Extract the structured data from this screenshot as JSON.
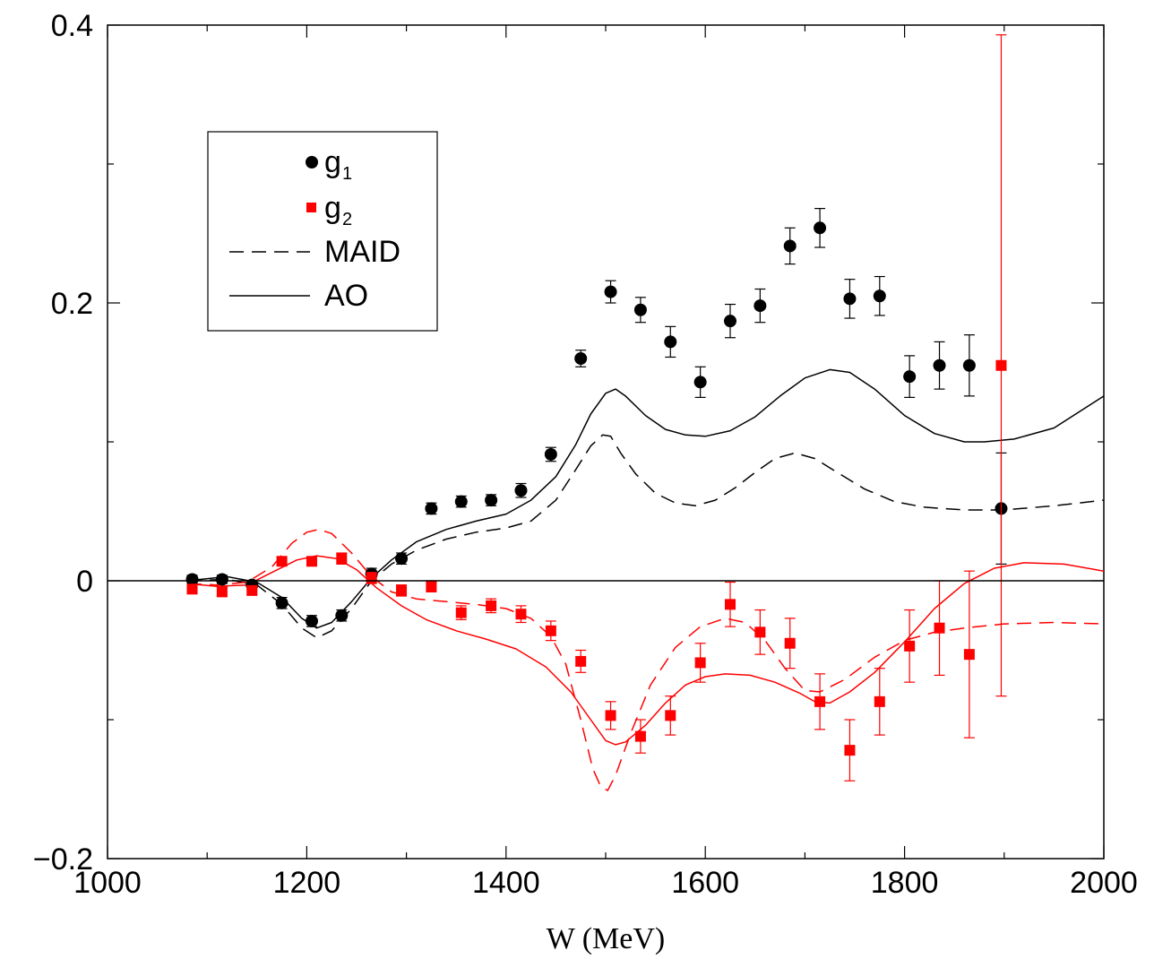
{
  "chart_data": {
    "type": "scatter",
    "xlabel": "W (MeV)",
    "ylabel": "",
    "xlim": [
      1000,
      2000
    ],
    "ylim": [
      -0.2,
      0.4
    ],
    "x_ticks": [
      {
        "value": 1000,
        "label": "1000"
      },
      {
        "value": 1200,
        "label": "1200"
      },
      {
        "value": 1400,
        "label": "1400"
      },
      {
        "value": 1600,
        "label": "1600"
      },
      {
        "value": 1800,
        "label": "1800"
      },
      {
        "value": 2000,
        "label": "2000"
      }
    ],
    "y_ticks": [
      {
        "value": -0.2,
        "label": "−0.2"
      },
      {
        "value": 0,
        "label": "0"
      },
      {
        "value": 0.2,
        "label": "0.2"
      },
      {
        "value": 0.4,
        "label": "0.4"
      }
    ],
    "zero_line": true,
    "grid": false,
    "legend_position": "top-left",
    "legend": [
      {
        "label": "g",
        "sub": "1",
        "kind": "marker-circle",
        "color": "#000000"
      },
      {
        "label": "g",
        "sub": "2",
        "kind": "marker-square",
        "color": "#ff0000"
      },
      {
        "label": "MAID",
        "kind": "line-dashed",
        "color": "#000000"
      },
      {
        "label": "AO",
        "kind": "line-solid",
        "color": "#000000"
      }
    ],
    "series": [
      {
        "name": "g1",
        "kind": "points",
        "marker": "circle",
        "color": "#000000",
        "points": [
          {
            "x": 1085,
            "y": 0.001,
            "err": 0.003
          },
          {
            "x": 1115,
            "y": 0.001,
            "err": 0.003
          },
          {
            "x": 1145,
            "y": -0.003,
            "err": 0.003
          },
          {
            "x": 1175,
            "y": -0.016,
            "err": 0.004
          },
          {
            "x": 1205,
            "y": -0.029,
            "err": 0.004
          },
          {
            "x": 1235,
            "y": -0.025,
            "err": 0.004
          },
          {
            "x": 1265,
            "y": 0.005,
            "err": 0.004
          },
          {
            "x": 1295,
            "y": 0.016,
            "err": 0.004
          },
          {
            "x": 1325,
            "y": 0.052,
            "err": 0.004
          },
          {
            "x": 1355,
            "y": 0.057,
            "err": 0.004
          },
          {
            "x": 1385,
            "y": 0.058,
            "err": 0.004
          },
          {
            "x": 1415,
            "y": 0.065,
            "err": 0.005
          },
          {
            "x": 1445,
            "y": 0.091,
            "err": 0.005
          },
          {
            "x": 1475,
            "y": 0.16,
            "err": 0.006
          },
          {
            "x": 1505,
            "y": 0.208,
            "err": 0.008
          },
          {
            "x": 1535,
            "y": 0.195,
            "err": 0.009
          },
          {
            "x": 1565,
            "y": 0.172,
            "err": 0.011
          },
          {
            "x": 1595,
            "y": 0.143,
            "err": 0.011
          },
          {
            "x": 1625,
            "y": 0.187,
            "err": 0.012
          },
          {
            "x": 1655,
            "y": 0.198,
            "err": 0.012
          },
          {
            "x": 1685,
            "y": 0.241,
            "err": 0.013
          },
          {
            "x": 1715,
            "y": 0.254,
            "err": 0.014
          },
          {
            "x": 1745,
            "y": 0.203,
            "err": 0.014
          },
          {
            "x": 1775,
            "y": 0.205,
            "err": 0.014
          },
          {
            "x": 1805,
            "y": 0.147,
            "err": 0.015
          },
          {
            "x": 1835,
            "y": 0.155,
            "err": 0.017
          },
          {
            "x": 1865,
            "y": 0.155,
            "err": 0.022
          },
          {
            "x": 1897,
            "y": 0.052,
            "err": 0.04
          }
        ]
      },
      {
        "name": "g2",
        "kind": "points",
        "marker": "square",
        "color": "#ff0000",
        "points": [
          {
            "x": 1085,
            "y": -0.006,
            "err": 0.003
          },
          {
            "x": 1115,
            "y": -0.008,
            "err": 0.003
          },
          {
            "x": 1145,
            "y": -0.007,
            "err": 0.003
          },
          {
            "x": 1175,
            "y": 0.014,
            "err": 0.003
          },
          {
            "x": 1205,
            "y": 0.014,
            "err": 0.003
          },
          {
            "x": 1235,
            "y": 0.016,
            "err": 0.004
          },
          {
            "x": 1265,
            "y": 0.002,
            "err": 0.004
          },
          {
            "x": 1295,
            "y": -0.007,
            "err": 0.004
          },
          {
            "x": 1325,
            "y": -0.004,
            "err": 0.004
          },
          {
            "x": 1355,
            "y": -0.023,
            "err": 0.005
          },
          {
            "x": 1385,
            "y": -0.018,
            "err": 0.005
          },
          {
            "x": 1415,
            "y": -0.024,
            "err": 0.006
          },
          {
            "x": 1445,
            "y": -0.036,
            "err": 0.007
          },
          {
            "x": 1475,
            "y": -0.058,
            "err": 0.008
          },
          {
            "x": 1505,
            "y": -0.097,
            "err": 0.01
          },
          {
            "x": 1535,
            "y": -0.112,
            "err": 0.012
          },
          {
            "x": 1565,
            "y": -0.097,
            "err": 0.014
          },
          {
            "x": 1595,
            "y": -0.059,
            "err": 0.014
          },
          {
            "x": 1625,
            "y": -0.017,
            "err": 0.016
          },
          {
            "x": 1655,
            "y": -0.037,
            "err": 0.016
          },
          {
            "x": 1685,
            "y": -0.045,
            "err": 0.018
          },
          {
            "x": 1715,
            "y": -0.087,
            "err": 0.02
          },
          {
            "x": 1745,
            "y": -0.122,
            "err": 0.022
          },
          {
            "x": 1775,
            "y": -0.087,
            "err": 0.024
          },
          {
            "x": 1805,
            "y": -0.047,
            "err": 0.026
          },
          {
            "x": 1835,
            "y": -0.034,
            "err": 0.034
          },
          {
            "x": 1865,
            "y": -0.053,
            "err": 0.06
          },
          {
            "x": 1897,
            "y": 0.155,
            "err": 0.238
          }
        ]
      },
      {
        "name": "MAID",
        "kind": "curve",
        "style": "dashed",
        "color": "#000000",
        "points": [
          [
            1080,
            0.0
          ],
          [
            1120,
            0.001
          ],
          [
            1150,
            -0.003
          ],
          [
            1175,
            -0.017
          ],
          [
            1195,
            -0.034
          ],
          [
            1210,
            -0.041
          ],
          [
            1225,
            -0.036
          ],
          [
            1245,
            -0.02
          ],
          [
            1265,
            0.0
          ],
          [
            1285,
            0.012
          ],
          [
            1310,
            0.022
          ],
          [
            1340,
            0.03
          ],
          [
            1370,
            0.035
          ],
          [
            1400,
            0.038
          ],
          [
            1425,
            0.043
          ],
          [
            1450,
            0.058
          ],
          [
            1470,
            0.08
          ],
          [
            1485,
            0.097
          ],
          [
            1497,
            0.105
          ],
          [
            1505,
            0.104
          ],
          [
            1515,
            0.092
          ],
          [
            1530,
            0.077
          ],
          [
            1550,
            0.063
          ],
          [
            1570,
            0.056
          ],
          [
            1590,
            0.054
          ],
          [
            1610,
            0.058
          ],
          [
            1630,
            0.067
          ],
          [
            1650,
            0.078
          ],
          [
            1670,
            0.088
          ],
          [
            1690,
            0.092
          ],
          [
            1710,
            0.088
          ],
          [
            1730,
            0.079
          ],
          [
            1760,
            0.066
          ],
          [
            1790,
            0.057
          ],
          [
            1820,
            0.053
          ],
          [
            1860,
            0.051
          ],
          [
            1900,
            0.051
          ],
          [
            1950,
            0.054
          ],
          [
            2000,
            0.058
          ]
        ]
      },
      {
        "name": "AO",
        "kind": "curve",
        "style": "solid",
        "color": "#000000",
        "points": [
          [
            1080,
            0.0
          ],
          [
            1120,
            0.003
          ],
          [
            1150,
            -0.001
          ],
          [
            1175,
            -0.012
          ],
          [
            1195,
            -0.027
          ],
          [
            1210,
            -0.034
          ],
          [
            1225,
            -0.03
          ],
          [
            1245,
            -0.015
          ],
          [
            1265,
            0.002
          ],
          [
            1285,
            0.015
          ],
          [
            1310,
            0.028
          ],
          [
            1340,
            0.037
          ],
          [
            1370,
            0.043
          ],
          [
            1400,
            0.048
          ],
          [
            1425,
            0.058
          ],
          [
            1450,
            0.075
          ],
          [
            1470,
            0.098
          ],
          [
            1485,
            0.12
          ],
          [
            1500,
            0.135
          ],
          [
            1510,
            0.138
          ],
          [
            1520,
            0.133
          ],
          [
            1540,
            0.119
          ],
          [
            1560,
            0.109
          ],
          [
            1580,
            0.105
          ],
          [
            1600,
            0.104
          ],
          [
            1625,
            0.108
          ],
          [
            1650,
            0.118
          ],
          [
            1675,
            0.133
          ],
          [
            1700,
            0.146
          ],
          [
            1725,
            0.152
          ],
          [
            1745,
            0.15
          ],
          [
            1770,
            0.138
          ],
          [
            1800,
            0.119
          ],
          [
            1830,
            0.106
          ],
          [
            1860,
            0.1
          ],
          [
            1880,
            0.1
          ],
          [
            1910,
            0.102
          ],
          [
            1950,
            0.11
          ],
          [
            2000,
            0.133
          ]
        ]
      },
      {
        "name": "g2 MAID",
        "kind": "curve",
        "style": "dashed",
        "color": "#ff0000",
        "points": [
          [
            1080,
            -0.002
          ],
          [
            1110,
            -0.003
          ],
          [
            1140,
            -0.001
          ],
          [
            1165,
            0.01
          ],
          [
            1185,
            0.027
          ],
          [
            1200,
            0.035
          ],
          [
            1212,
            0.037
          ],
          [
            1225,
            0.034
          ],
          [
            1245,
            0.02
          ],
          [
            1265,
            0.003
          ],
          [
            1285,
            -0.008
          ],
          [
            1310,
            -0.013
          ],
          [
            1340,
            -0.015
          ],
          [
            1370,
            -0.017
          ],
          [
            1400,
            -0.02
          ],
          [
            1425,
            -0.027
          ],
          [
            1445,
            -0.04
          ],
          [
            1460,
            -0.06
          ],
          [
            1475,
            -0.1
          ],
          [
            1487,
            -0.135
          ],
          [
            1495,
            -0.148
          ],
          [
            1502,
            -0.151
          ],
          [
            1510,
            -0.14
          ],
          [
            1525,
            -0.11
          ],
          [
            1545,
            -0.075
          ],
          [
            1570,
            -0.048
          ],
          [
            1595,
            -0.033
          ],
          [
            1620,
            -0.027
          ],
          [
            1640,
            -0.03
          ],
          [
            1660,
            -0.043
          ],
          [
            1680,
            -0.063
          ],
          [
            1700,
            -0.079
          ],
          [
            1715,
            -0.08
          ],
          [
            1740,
            -0.071
          ],
          [
            1770,
            -0.055
          ],
          [
            1800,
            -0.043
          ],
          [
            1830,
            -0.037
          ],
          [
            1860,
            -0.034
          ],
          [
            1900,
            -0.031
          ],
          [
            1950,
            -0.03
          ],
          [
            2000,
            -0.031
          ]
        ]
      },
      {
        "name": "g2 AO",
        "kind": "curve",
        "style": "solid",
        "color": "#ff0000",
        "points": [
          [
            1080,
            -0.002
          ],
          [
            1110,
            -0.004
          ],
          [
            1140,
            -0.003
          ],
          [
            1165,
            0.006
          ],
          [
            1190,
            0.015
          ],
          [
            1210,
            0.018
          ],
          [
            1230,
            0.016
          ],
          [
            1250,
            0.008
          ],
          [
            1270,
            -0.005
          ],
          [
            1295,
            -0.018
          ],
          [
            1320,
            -0.028
          ],
          [
            1350,
            -0.036
          ],
          [
            1380,
            -0.042
          ],
          [
            1410,
            -0.049
          ],
          [
            1440,
            -0.062
          ],
          [
            1465,
            -0.08
          ],
          [
            1485,
            -0.1
          ],
          [
            1500,
            -0.115
          ],
          [
            1510,
            -0.118
          ],
          [
            1520,
            -0.116
          ],
          [
            1540,
            -0.104
          ],
          [
            1560,
            -0.088
          ],
          [
            1580,
            -0.075
          ],
          [
            1600,
            -0.069
          ],
          [
            1620,
            -0.067
          ],
          [
            1645,
            -0.068
          ],
          [
            1670,
            -0.073
          ],
          [
            1695,
            -0.081
          ],
          [
            1710,
            -0.087
          ],
          [
            1725,
            -0.088
          ],
          [
            1745,
            -0.08
          ],
          [
            1770,
            -0.066
          ],
          [
            1800,
            -0.044
          ],
          [
            1830,
            -0.02
          ],
          [
            1860,
            -0.002
          ],
          [
            1890,
            0.009
          ],
          [
            1920,
            0.013
          ],
          [
            1960,
            0.012
          ],
          [
            2000,
            0.007
          ]
        ]
      }
    ]
  }
}
